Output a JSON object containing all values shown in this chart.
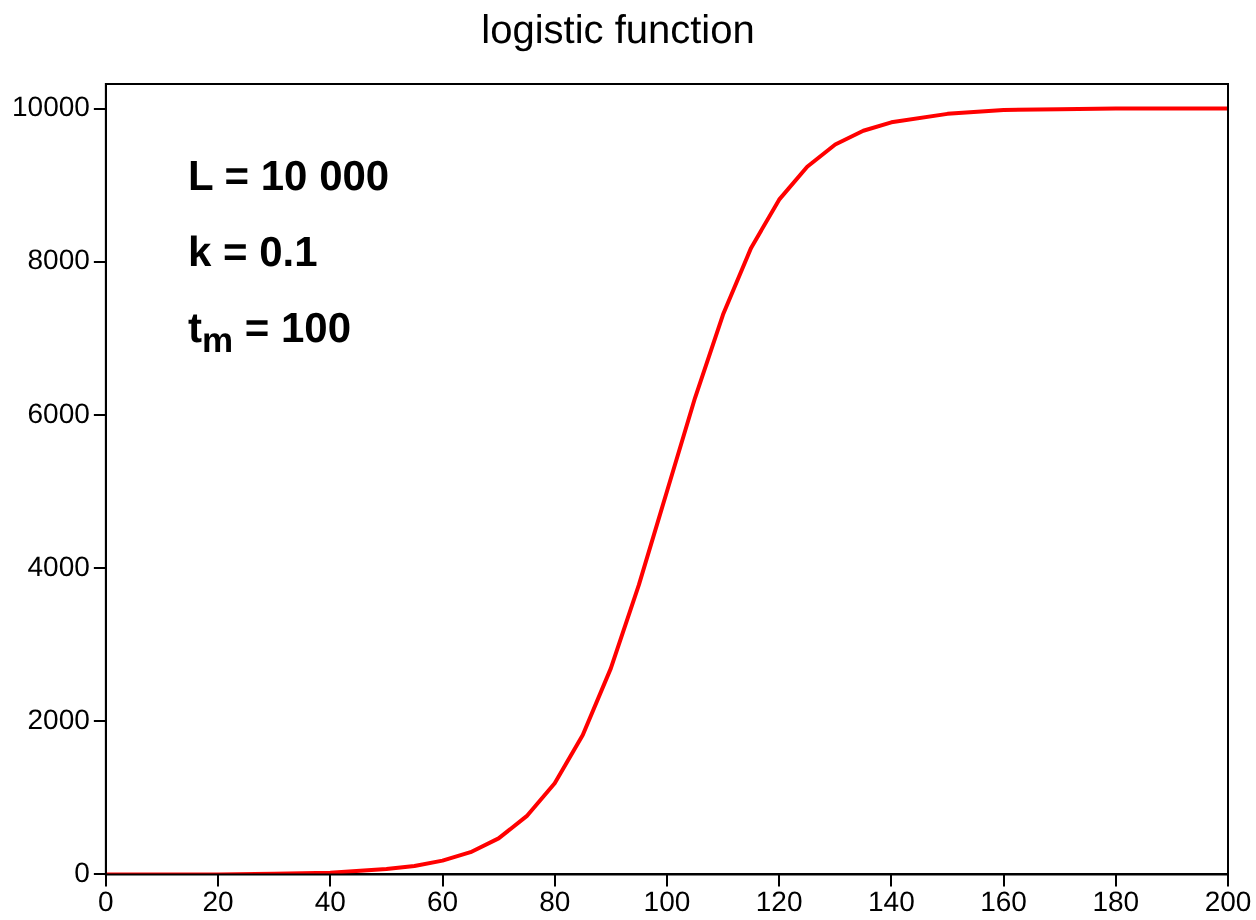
{
  "chart_data": {
    "type": "line",
    "title": "logistic function",
    "x": [
      0,
      10,
      20,
      30,
      40,
      50,
      55,
      60,
      65,
      70,
      75,
      80,
      85,
      90,
      95,
      100,
      105,
      110,
      115,
      120,
      125,
      130,
      135,
      140,
      150,
      160,
      170,
      180,
      190,
      200
    ],
    "series": [
      {
        "color": "#ff0000",
        "values": [
          0,
          0,
          0,
          10,
          20,
          70,
          110,
          180,
          290,
          470,
          760,
          1190,
          1820,
          2690,
          3780,
          5000,
          6220,
          7310,
          8180,
          8810,
          9240,
          9530,
          9710,
          9820,
          9930,
          9980,
          9990,
          10000,
          10000,
          10000
        ]
      }
    ],
    "xlim": [
      0,
      200
    ],
    "xticks": [
      0,
      20,
      40,
      60,
      80,
      100,
      120,
      140,
      160,
      180,
      200
    ],
    "ylim": [
      0,
      10320
    ],
    "yticks": [
      0,
      2000,
      4000,
      6000,
      8000,
      10000
    ],
    "annotations": [
      "L = 10 000",
      "k = 0.1",
      "t$_{m}$ = 100"
    ]
  }
}
